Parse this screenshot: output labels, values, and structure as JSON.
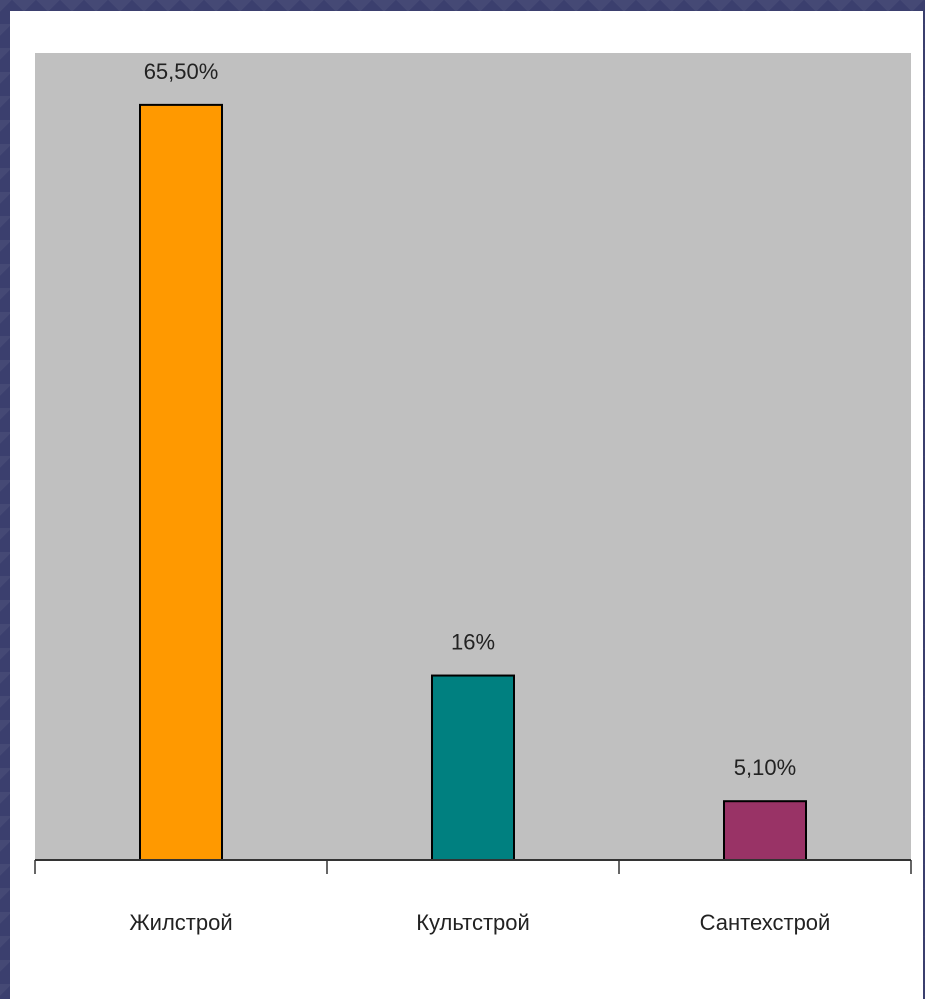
{
  "chart_data": {
    "type": "bar",
    "categories": [
      "Жилстрой",
      "Культстрой",
      "Сантехстрой"
    ],
    "values": [
      65.5,
      16,
      5.1
    ],
    "data_labels": [
      "65,50%",
      "16%",
      "5,10%"
    ],
    "colors": [
      "#ff9900",
      "#008080",
      "#993366"
    ],
    "plot_background": "#c0c0c0",
    "ylim": [
      0,
      70
    ],
    "title": "",
    "xlabel": "",
    "ylabel": "",
    "grid": false,
    "legend": "none"
  }
}
